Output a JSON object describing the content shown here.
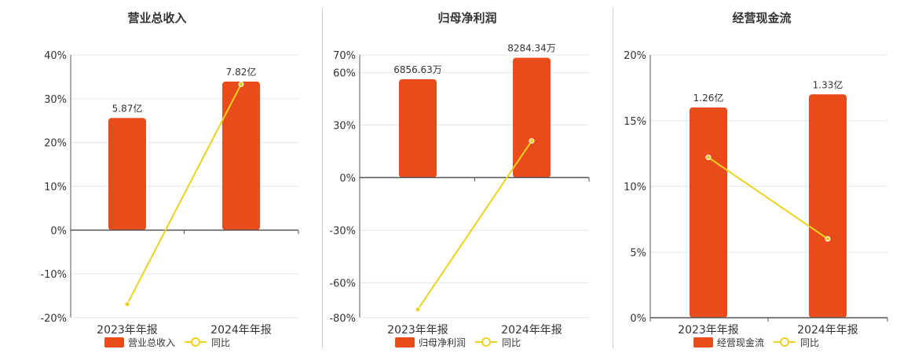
{
  "colors": {
    "bar": "#e84c1a",
    "line": "#ecd21e",
    "axis": "#555555",
    "grid": "#e6e6e6",
    "text": "#333333"
  },
  "legend": {
    "yoy_label": "同比"
  },
  "chart_data": [
    {
      "type": "bar",
      "title": "营业总收入",
      "categories": [
        "2023年年报",
        "2024年年报"
      ],
      "series": [
        {
          "name": "营业总收入",
          "kind": "bar",
          "values": [
            25.6,
            33.9
          ],
          "labels": [
            "5.87亿",
            "7.82亿"
          ]
        },
        {
          "name": "同比",
          "kind": "line",
          "values": [
            -16.9,
            33.3
          ]
        }
      ],
      "yticks": [
        "40%",
        "30%",
        "20%",
        "10%",
        "0%",
        "-10%",
        "-20%"
      ],
      "ytick_values": [
        40,
        30,
        20,
        10,
        0,
        -10,
        -20
      ],
      "ylim": [
        -20,
        40
      ]
    },
    {
      "type": "bar",
      "title": "归母净利润",
      "categories": [
        "2023年年报",
        "2024年年报"
      ],
      "series": [
        {
          "name": "归母净利润",
          "kind": "bar",
          "values": [
            56.1,
            68.4
          ],
          "labels": [
            "6856.63万",
            "8284.34万"
          ]
        },
        {
          "name": "同比",
          "kind": "line",
          "values": [
            -75.3,
            20.9
          ]
        }
      ],
      "yticks": [
        "70%",
        "60%",
        "30%",
        "0%",
        "-30%",
        "-60%",
        "-80%"
      ],
      "ytick_values": [
        70,
        60,
        30,
        0,
        -30,
        -60,
        -80
      ],
      "ylim": [
        -80,
        70
      ]
    },
    {
      "type": "bar",
      "title": "经营现金流",
      "categories": [
        "2023年年报",
        "2024年年报"
      ],
      "series": [
        {
          "name": "经营现金流",
          "kind": "bar",
          "values": [
            16.0,
            17.0
          ],
          "labels": [
            "1.26亿",
            "1.33亿"
          ]
        },
        {
          "name": "同比",
          "kind": "line",
          "values": [
            12.2,
            6.0
          ]
        }
      ],
      "yticks": [
        "20%",
        "15%",
        "10%",
        "5%",
        "0%"
      ],
      "ytick_values": [
        20,
        15,
        10,
        5,
        0
      ],
      "ylim": [
        0,
        20
      ]
    }
  ]
}
